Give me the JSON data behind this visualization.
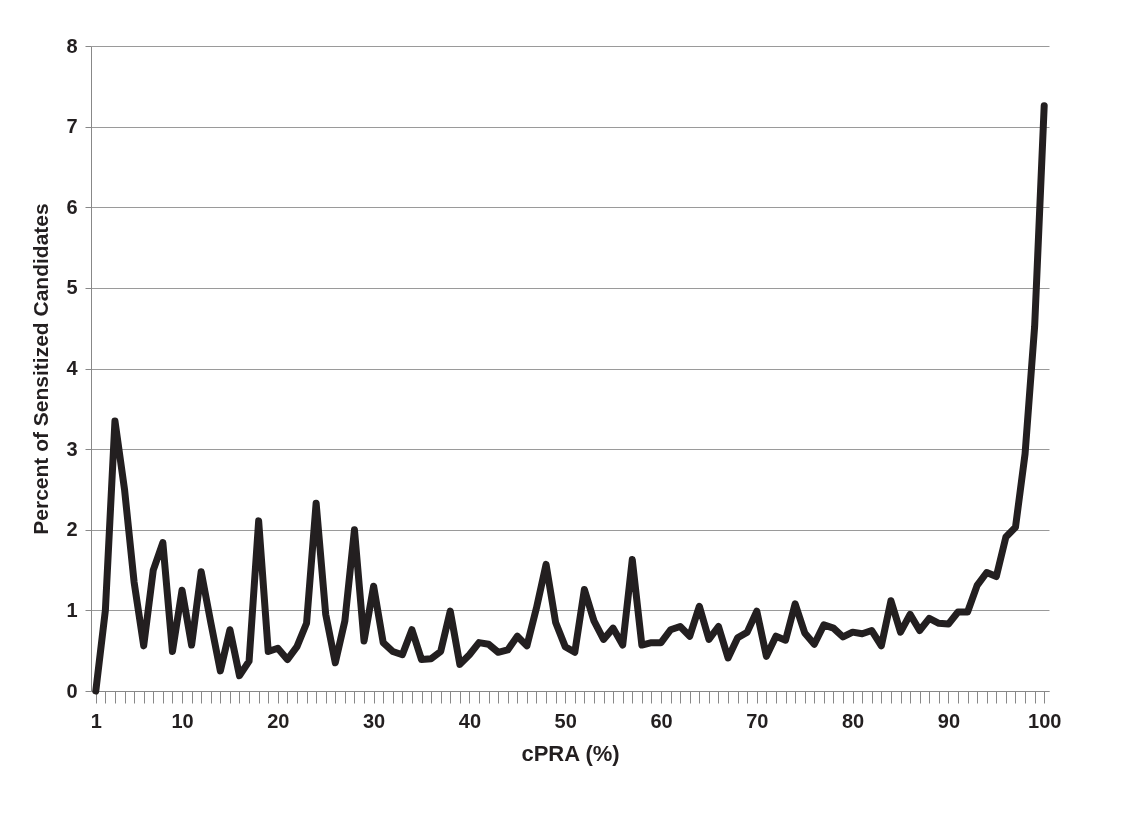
{
  "chart_data": {
    "type": "line",
    "xlabel": "cPRA (%)",
    "ylabel": "Percent of Sensitized Candidates",
    "categories": [
      "1",
      null,
      null,
      null,
      null,
      null,
      null,
      null,
      null,
      "10",
      null,
      null,
      null,
      null,
      null,
      null,
      null,
      null,
      null,
      "20",
      null,
      null,
      null,
      null,
      null,
      null,
      null,
      null,
      null,
      "30",
      null,
      null,
      null,
      null,
      null,
      null,
      null,
      null,
      null,
      "40",
      null,
      null,
      null,
      null,
      null,
      null,
      null,
      null,
      null,
      "50",
      null,
      null,
      null,
      null,
      null,
      null,
      null,
      null,
      null,
      "60",
      null,
      null,
      null,
      null,
      null,
      null,
      null,
      null,
      null,
      "70",
      null,
      null,
      null,
      null,
      null,
      null,
      null,
      null,
      null,
      "80",
      null,
      null,
      null,
      null,
      null,
      null,
      null,
      null,
      null,
      "90",
      null,
      null,
      null,
      null,
      null,
      null,
      null,
      null,
      null,
      "100"
    ],
    "series": [
      {
        "color": "#231f20",
        "values": [
          0,
          1.0,
          3.35,
          2.5,
          1.35,
          0.56,
          1.5,
          1.84,
          0.49,
          1.25,
          0.57,
          1.48,
          0.85,
          0.25,
          0.76,
          0.19,
          0.37,
          2.11,
          0.49,
          0.53,
          0.39,
          0.55,
          0.84,
          2.33,
          0.95,
          0.35,
          0.87,
          2.0,
          0.62,
          1.3,
          0.6,
          0.49,
          0.45,
          0.76,
          0.39,
          0.4,
          0.49,
          0.99,
          0.33,
          0.45,
          0.6,
          0.58,
          0.48,
          0.51,
          0.68,
          0.56,
          1.03,
          1.57,
          0.85,
          0.55,
          0.48,
          1.26,
          0.87,
          0.64,
          0.78,
          0.57,
          1.63,
          0.57,
          0.6,
          0.6,
          0.76,
          0.8,
          0.68,
          1.05,
          0.64,
          0.8,
          0.41,
          0.66,
          0.73,
          0.99,
          0.43,
          0.68,
          0.63,
          1.08,
          0.72,
          0.58,
          0.82,
          0.78,
          0.67,
          0.73,
          0.71,
          0.75,
          0.56,
          1.12,
          0.73,
          0.95,
          0.75,
          0.9,
          0.84,
          0.83,
          0.98,
          0.98,
          1.31,
          1.47,
          1.42,
          1.91,
          2.03,
          2.94,
          4.52,
          7.26
        ]
      }
    ],
    "ylim": [
      0,
      8
    ],
    "yticks": [
      0,
      1,
      2,
      3,
      4,
      5,
      6,
      7,
      8
    ],
    "grid": "y",
    "line_style": "solid"
  }
}
